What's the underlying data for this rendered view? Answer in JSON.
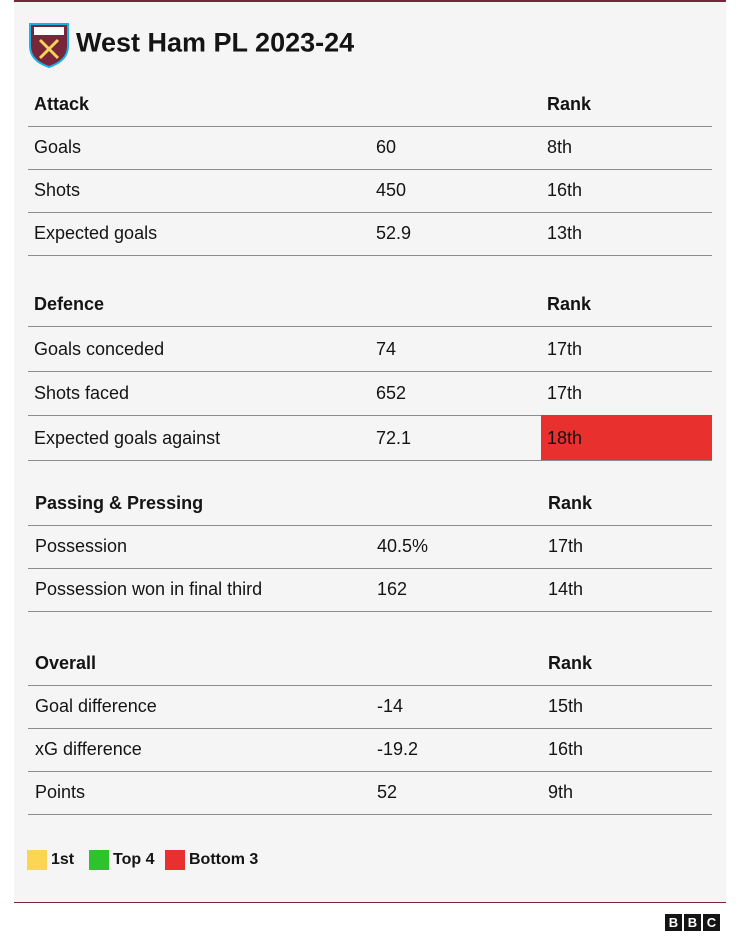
{
  "header": {
    "title": "West Ham PL 2023-24"
  },
  "sections": [
    {
      "title": "Attack",
      "rank_header": "Rank",
      "rows": [
        {
          "label": "Goals",
          "value": "60",
          "rank": "8th"
        },
        {
          "label": "Shots",
          "value": "450",
          "rank": "16th"
        },
        {
          "label": "Expected goals",
          "value": "52.9",
          "rank": "13th"
        }
      ]
    },
    {
      "title": "Defence",
      "rank_header": "Rank",
      "rows": [
        {
          "label": "Goals conceded",
          "value": "74",
          "rank": "17th"
        },
        {
          "label": "Shots faced",
          "value": "652",
          "rank": "17th"
        },
        {
          "label": "Expected goals against",
          "value": "72.1",
          "rank": "18th",
          "color": "#e8302e"
        }
      ]
    },
    {
      "title": "Passing & Pressing",
      "rank_header": "Rank",
      "rows": [
        {
          "label": "Possession",
          "value": "40.5%",
          "rank": "17th"
        },
        {
          "label": "Possession won in final third",
          "value": "162",
          "rank": "14th"
        }
      ]
    },
    {
      "title": "Overall",
      "rank_header": "Rank",
      "rows": [
        {
          "label": "Goal difference",
          "value": "-14",
          "rank": "15th"
        },
        {
          "label": "xG difference",
          "value": "-19.2",
          "rank": "16th"
        },
        {
          "label": "Points",
          "value": "52",
          "rank": "9th"
        }
      ]
    }
  ],
  "legend": [
    {
      "label": "1st",
      "color": "#fcd653"
    },
    {
      "label": "Top 4",
      "color": "#2cc32c"
    },
    {
      "label": "Bottom 3",
      "color": "#e8302e"
    }
  ],
  "footer": {
    "logo": [
      "B",
      "B",
      "C"
    ]
  }
}
